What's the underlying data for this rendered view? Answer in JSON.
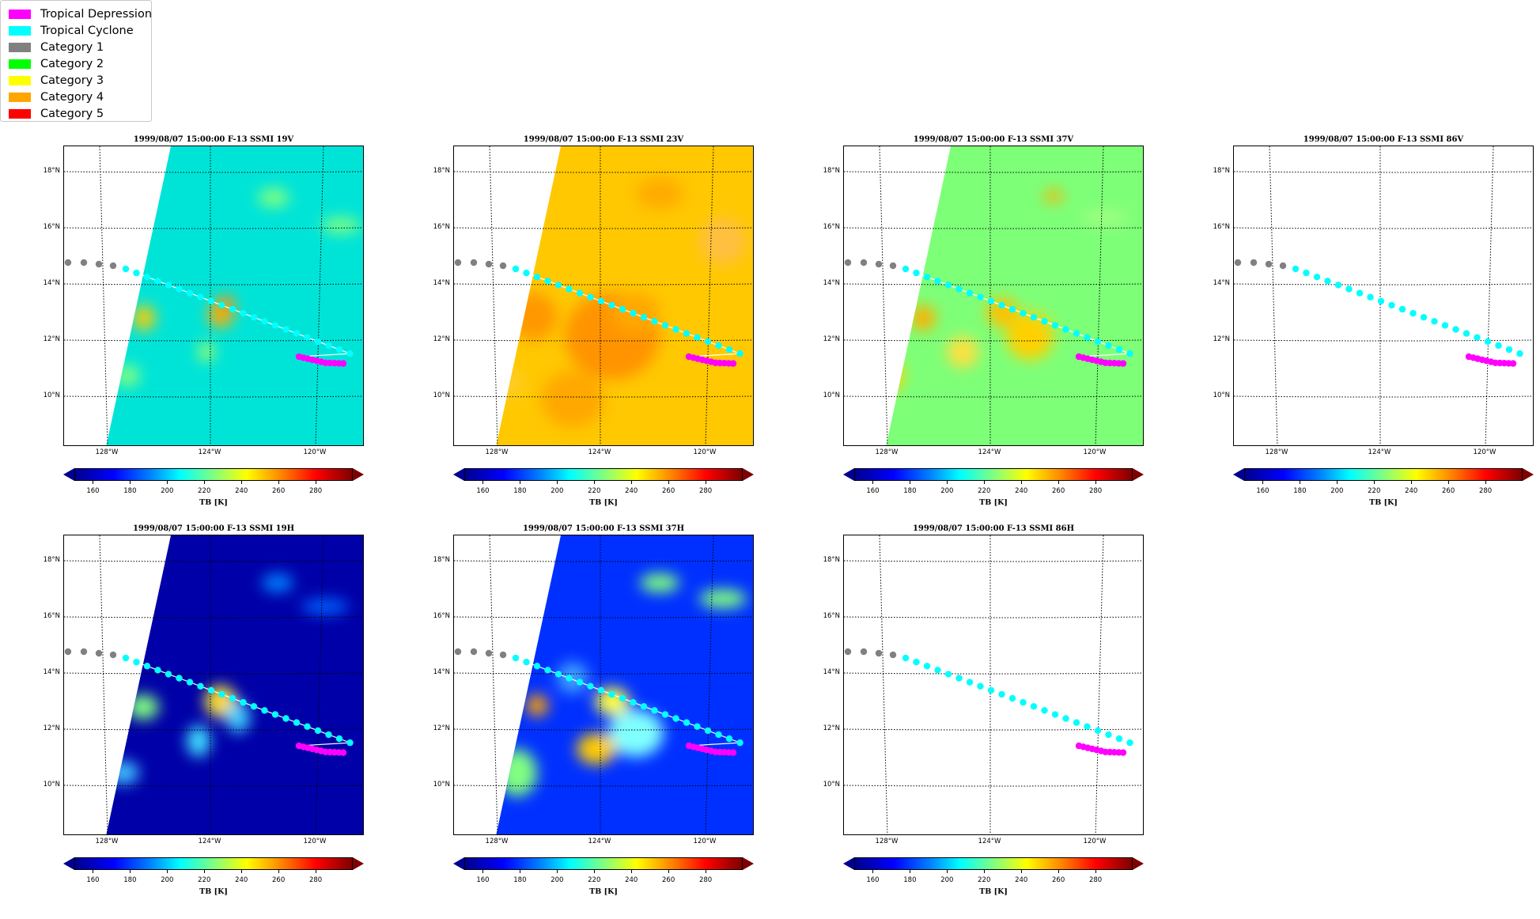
{
  "legend": {
    "items": [
      {
        "label": "Tropical Depression",
        "color": "#ff00ff"
      },
      {
        "label": "Tropical Cyclone",
        "color": "#00ffff"
      },
      {
        "label": "Category 1",
        "color": "#808080"
      },
      {
        "label": "Category 2",
        "color": "#00ff00"
      },
      {
        "label": "Category 3",
        "color": "#ffff00"
      },
      {
        "label": "Category 4",
        "color": "#ffa500"
      },
      {
        "label": "Category 5",
        "color": "#ff0000"
      }
    ]
  },
  "lat_labels": [
    "18°N",
    "16°N",
    "14°N",
    "12°N",
    "10°N"
  ],
  "lon_labels": [
    "128°W",
    "124°W",
    "120°W"
  ],
  "colorbar": {
    "ticks": [
      "160",
      "180",
      "200",
      "220",
      "240",
      "260",
      "280"
    ],
    "label": "TB [K]",
    "range": [
      150,
      300
    ],
    "colormap": "jet"
  },
  "panels": [
    {
      "title": "1999/08/07 15:00:00  F-13 SSMI 19V",
      "has_data": true,
      "base_color": "#00e4d8"
    },
    {
      "title": "1999/08/07 15:00:00  F-13 SSMI 23V",
      "has_data": true,
      "base_color": "#ffc800"
    },
    {
      "title": "1999/08/07 15:00:00  F-13 SSMI 37V",
      "has_data": true,
      "base_color": "#7dff78"
    },
    {
      "title": "1999/08/07 15:00:00  F-13 SSMI 86V",
      "has_data": false,
      "base_color": "#ffffff"
    },
    {
      "title": "1999/08/07 15:00:00  F-13 SSMI 19H",
      "has_data": true,
      "base_color": "#0000a8"
    },
    {
      "title": "1999/08/07 15:00:00  F-13 SSMI 37H",
      "has_data": true,
      "base_color": "#0030ff"
    },
    {
      "title": "1999/08/07 15:00:00  F-13 SSMI 86H",
      "has_data": false,
      "base_color": "#ffffff"
    }
  ]
}
